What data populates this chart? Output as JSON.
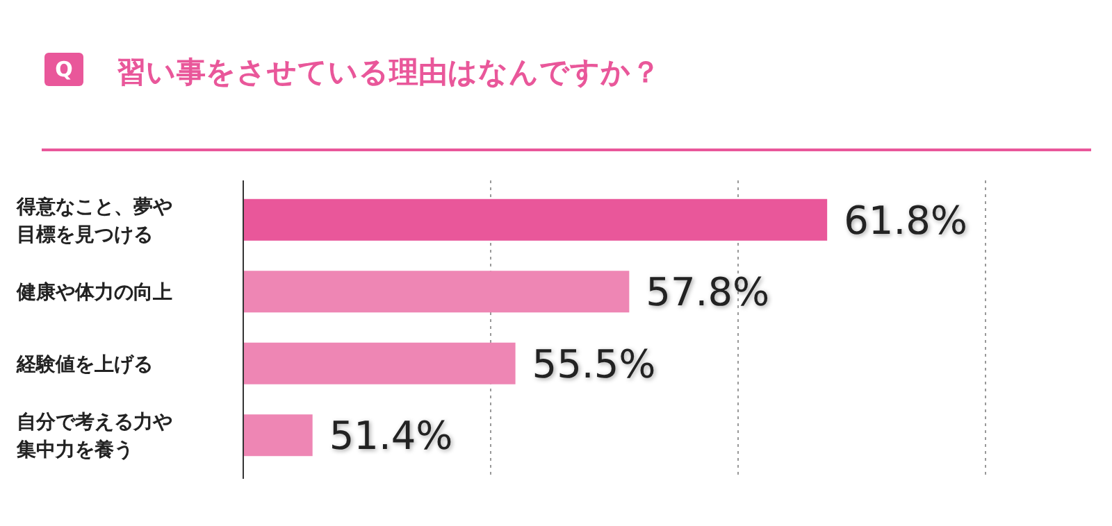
{
  "chart_data": {
    "type": "bar",
    "orientation": "horizontal",
    "title": "習い事をさせている理由はなんですか？",
    "annotations": [
      "Q"
    ],
    "categories": [
      "得意なこと、夢や目標を見つける",
      "健康や体力の向上",
      "経験値を上げる",
      "自分で考える力や集中力を養う"
    ],
    "values": [
      61.8,
      57.8,
      55.5,
      51.4
    ],
    "colors": [
      "#e9579a",
      "#ee86b4",
      "#ee86b4",
      "#ee86b4"
    ],
    "value_labels": [
      "61.8%",
      "57.8%",
      "55.5%",
      "51.4%"
    ],
    "xlim": [
      50,
      65
    ],
    "xticks": [
      {
        "value": 55,
        "label": null
      },
      {
        "value": 60,
        "label": null
      },
      {
        "value": 65,
        "label": null
      }
    ],
    "grid": "x",
    "tick_labels": "y"
  }
}
